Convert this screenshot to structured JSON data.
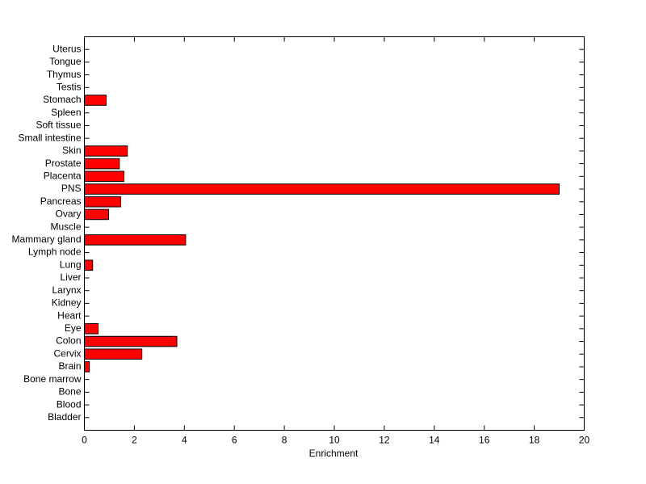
{
  "chart_data": {
    "type": "barh",
    "xlabel": "Enrichment",
    "categories": [
      "Bladder",
      "Blood",
      "Bone",
      "Bone marrow",
      "Brain",
      "Cervix",
      "Colon",
      "Eye",
      "Heart",
      "Kidney",
      "Larynx",
      "Liver",
      "Lung",
      "Lymph node",
      "Mammary gland",
      "Muscle",
      "Ovary",
      "Pancreas",
      "PNS",
      "Placenta",
      "Prostate",
      "Skin",
      "Small intestine",
      "Soft tissue",
      "Spleen",
      "Stomach",
      "Testis",
      "Thymus",
      "Tongue",
      "Uterus"
    ],
    "values": [
      0,
      0,
      0,
      0,
      0.2,
      2.3,
      3.7,
      0.55,
      0,
      0,
      0,
      0,
      0.33,
      0,
      4.05,
      0,
      0.97,
      1.45,
      19.0,
      1.58,
      1.4,
      1.72,
      0,
      0,
      0,
      0.87,
      0,
      0,
      0,
      0
    ],
    "color": "#ff0000",
    "xlim": [
      0,
      20
    ],
    "xticks": [
      0,
      2,
      4,
      6,
      8,
      10,
      12,
      14,
      16,
      18,
      20
    ],
    "grid": false
  }
}
